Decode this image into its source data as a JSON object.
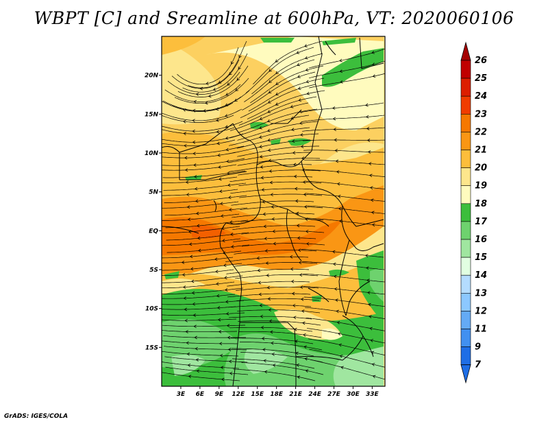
{
  "title": "WBPT [C] and Sreamline at 600hPa, VT: 2020060106",
  "credit": "GrADS: IGES/COLA",
  "map": {
    "lon_range": [
      0,
      35
    ],
    "lat_range": [
      -20,
      25
    ],
    "lat_ticks": [
      {
        "value": 20,
        "label": "20N"
      },
      {
        "value": 15,
        "label": "15N"
      },
      {
        "value": 10,
        "label": "10N"
      },
      {
        "value": 5,
        "label": "5N"
      },
      {
        "value": 0,
        "label": "EQ"
      },
      {
        "value": -5,
        "label": "5S"
      },
      {
        "value": -10,
        "label": "10S"
      },
      {
        "value": -15,
        "label": "15S"
      }
    ],
    "lon_ticks": [
      {
        "value": 3,
        "label": "3E"
      },
      {
        "value": 6,
        "label": "6E"
      },
      {
        "value": 9,
        "label": "9E"
      },
      {
        "value": 12,
        "label": "12E"
      },
      {
        "value": 15,
        "label": "15E"
      },
      {
        "value": 18,
        "label": "18E"
      },
      {
        "value": 21,
        "label": "21E"
      },
      {
        "value": 24,
        "label": "24E"
      },
      {
        "value": 27,
        "label": "27E"
      },
      {
        "value": 30,
        "label": "30E"
      },
      {
        "value": 33,
        "label": "33E"
      }
    ]
  },
  "colorbar": {
    "levels": [
      {
        "label": "26",
        "color": "#a50000"
      },
      {
        "label": "25",
        "color": "#c00000"
      },
      {
        "label": "24",
        "color": "#dc1e00"
      },
      {
        "label": "23",
        "color": "#f03c00"
      },
      {
        "label": "22",
        "color": "#f57800"
      },
      {
        "label": "21",
        "color": "#fa9614"
      },
      {
        "label": "20",
        "color": "#fcbe3c"
      },
      {
        "label": "19",
        "color": "#fde68c"
      },
      {
        "label": "18",
        "color": "#fffbbe"
      },
      {
        "label": "17",
        "color": "#3cbe3c"
      },
      {
        "label": "16",
        "color": "#6ed26e"
      },
      {
        "label": "15",
        "color": "#a0e6a0"
      },
      {
        "label": "14",
        "color": "#e1ffe1"
      },
      {
        "label": "13",
        "color": "#b4dcff"
      },
      {
        "label": "12",
        "color": "#8cc8ff"
      },
      {
        "label": "11",
        "color": "#64aaf5"
      },
      {
        "label": "9",
        "color": "#4190f0"
      },
      {
        "label": "7",
        "color": "#1e6ee6"
      }
    ],
    "bottom_color": "#1e6ee6"
  }
}
